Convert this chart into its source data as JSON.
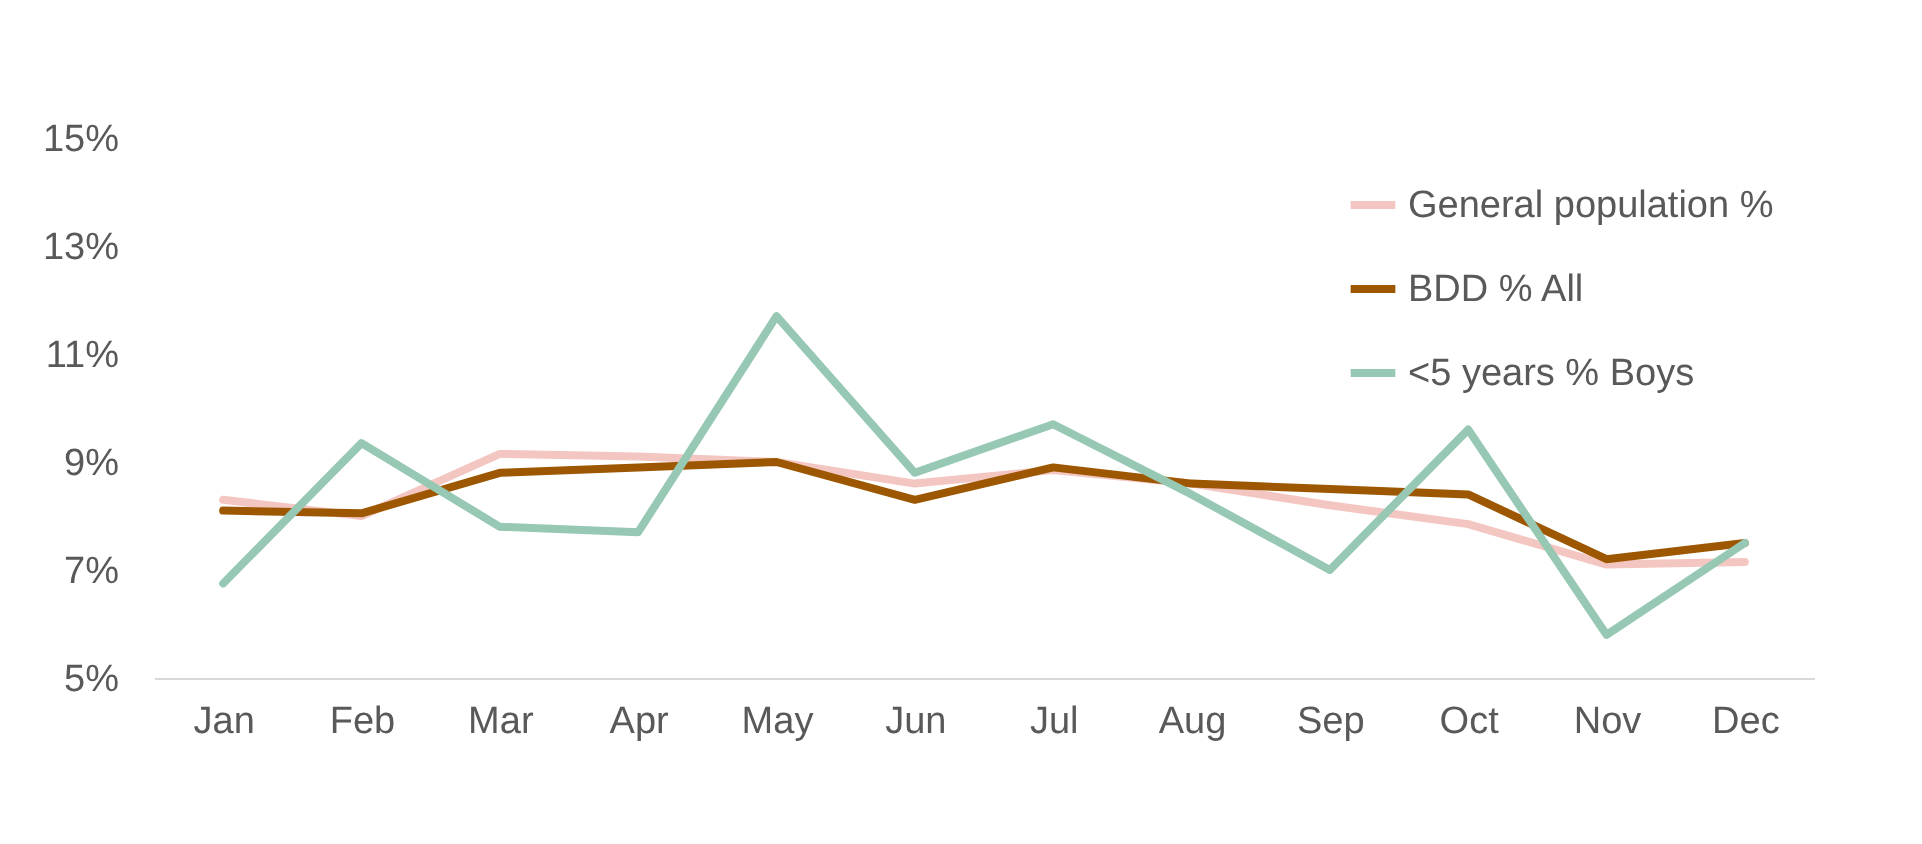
{
  "chart_data": {
    "type": "line",
    "categories": [
      "Jan",
      "Feb",
      "Mar",
      "Apr",
      "May",
      "Jun",
      "Jul",
      "Aug",
      "Sep",
      "Oct",
      "Nov",
      "Dec"
    ],
    "series": [
      {
        "name": "General population %",
        "color": "#f4c6c2",
        "values": [
          8.3,
          8.0,
          9.15,
          9.1,
          9.0,
          8.6,
          8.85,
          8.6,
          8.2,
          7.85,
          7.1,
          7.15
        ]
      },
      {
        "name": "BDD % All",
        "color": "#9c5700",
        "values": [
          8.1,
          8.05,
          8.8,
          8.9,
          9.0,
          8.3,
          8.9,
          8.6,
          8.5,
          8.4,
          7.2,
          7.5
        ]
      },
      {
        "name": "<5 years % Boys",
        "color": "#96c8b4",
        "values": [
          6.75,
          9.35,
          7.8,
          7.7,
          11.7,
          8.8,
          9.7,
          8.4,
          7.0,
          9.6,
          5.8,
          7.5
        ]
      }
    ],
    "ylim": [
      5,
      15
    ],
    "yticks": [
      {
        "value": 5,
        "label": "5%"
      },
      {
        "value": 7,
        "label": "7%"
      },
      {
        "value": 9,
        "label": "9%"
      },
      {
        "value": 11,
        "label": "11%"
      },
      {
        "value": 13,
        "label": "13%"
      },
      {
        "value": 15,
        "label": "15%"
      }
    ],
    "grid": false,
    "legend": "top right",
    "marker": "none",
    "line_style": "solid"
  }
}
